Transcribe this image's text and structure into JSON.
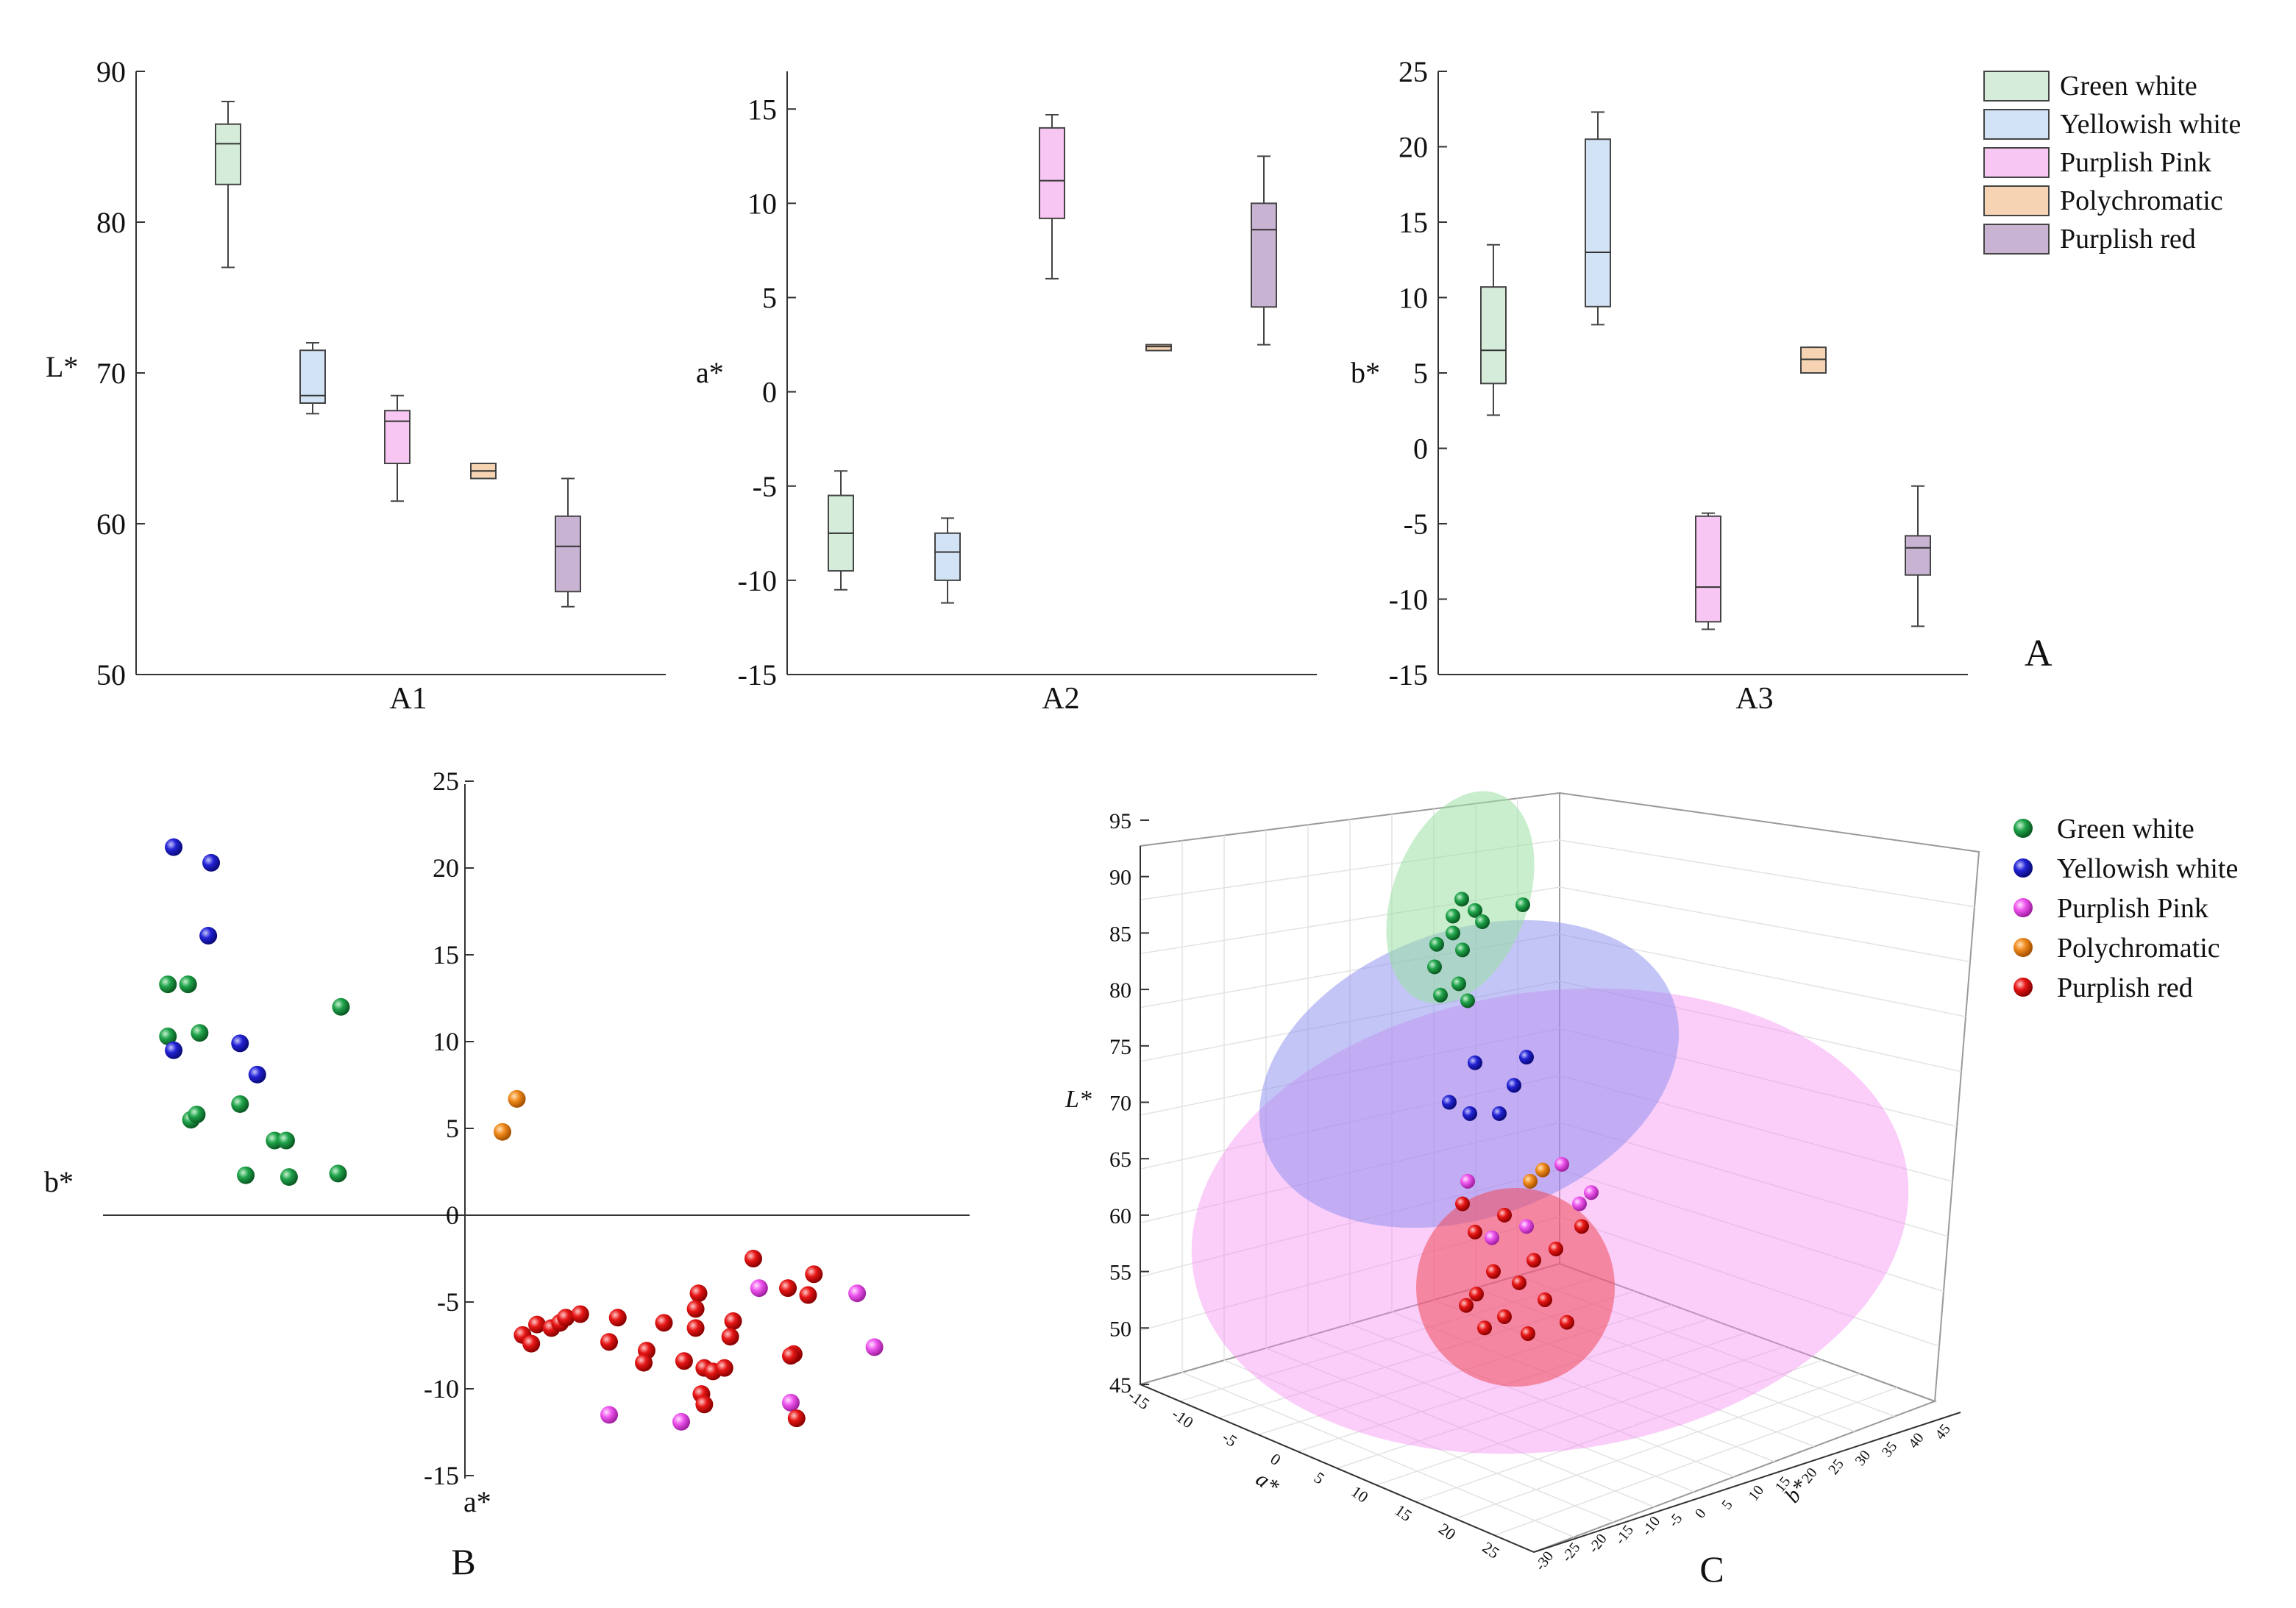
{
  "colors": {
    "green_white": "#1a8a3a",
    "yellowish_white": "#1f1fd0",
    "purplish_pink": "#ee55ee",
    "polychromatic": "#f08a1c",
    "purplish_red": "#e81616",
    "box_green_white": "#d4ecd9",
    "box_yellowish_white": "#d3e3f6",
    "box_purplish_pink": "#f7c6f2",
    "box_polychromatic": "#f6d4b3",
    "box_purplish_red": "#c9b3d3"
  },
  "chart_data": [
    {
      "panel": "A1",
      "type": "box",
      "xlabel": "A1",
      "ylabel": "L*",
      "ylim": [
        50,
        90
      ],
      "yticks": [
        50,
        60,
        70,
        80,
        90
      ],
      "groups": [
        {
          "name": "Green white",
          "min": 77,
          "q1": 82.5,
          "median": 85.2,
          "q3": 86.5,
          "max": 88
        },
        {
          "name": "Yellowish white",
          "min": 67.3,
          "q1": 68,
          "median": 68.5,
          "q3": 71.5,
          "max": 72
        },
        {
          "name": "Purplish Pink",
          "min": 61.5,
          "q1": 64,
          "median": 66.8,
          "q3": 67.5,
          "max": 68.5
        },
        {
          "name": "Polychromatic",
          "min": 63,
          "q1": 63,
          "median": 63.5,
          "q3": 64,
          "max": 64
        },
        {
          "name": "Purplish red",
          "min": 54.5,
          "q1": 55.5,
          "median": 58.5,
          "q3": 60.5,
          "max": 63
        }
      ]
    },
    {
      "panel": "A2",
      "type": "box",
      "xlabel": "A2",
      "ylabel": "a*",
      "ylim": [
        -15,
        17
      ],
      "yticks": [
        -15,
        -10,
        -5,
        0,
        5,
        10,
        15
      ],
      "groups": [
        {
          "name": "Green white",
          "min": -10.5,
          "q1": -9.5,
          "median": -7.5,
          "q3": -5.5,
          "max": -4.2
        },
        {
          "name": "Yellowish white",
          "min": -11.2,
          "q1": -10,
          "median": -8.5,
          "q3": -7.5,
          "max": -6.7
        },
        {
          "name": "Purplish Pink",
          "min": 6,
          "q1": 9.2,
          "median": 11.2,
          "q3": 14,
          "max": 14.7
        },
        {
          "name": "Polychromatic",
          "min": 2.2,
          "q1": 2.2,
          "median": 2.4,
          "q3": 2.5,
          "max": 2.5
        },
        {
          "name": "Purplish red",
          "min": 2.5,
          "q1": 4.5,
          "median": 8.6,
          "q3": 10,
          "max": 12.5
        }
      ]
    },
    {
      "panel": "A3",
      "type": "box",
      "xlabel": "A3",
      "ylabel": "b*",
      "ylim": [
        -15,
        25
      ],
      "yticks": [
        -15,
        -10,
        -5,
        0,
        5,
        10,
        15,
        20,
        25
      ],
      "panel_label": "A",
      "groups": [
        {
          "name": "Green white",
          "min": 2.2,
          "q1": 4.3,
          "median": 6.5,
          "q3": 10.7,
          "max": 13.5
        },
        {
          "name": "Yellowish white",
          "min": 8.2,
          "q1": 9.4,
          "median": 13,
          "q3": 20.5,
          "max": 22.3
        },
        {
          "name": "Purplish Pink",
          "min": -12,
          "q1": -11.5,
          "median": -9.2,
          "q3": -4.5,
          "max": -4.3
        },
        {
          "name": "Polychromatic",
          "min": 5,
          "q1": 5,
          "median": 5.9,
          "q3": 6.7,
          "max": 6.7
        },
        {
          "name": "Purplish red",
          "min": -11.8,
          "q1": -8.4,
          "median": -6.6,
          "q3": -5.8,
          "max": -2.5
        }
      ],
      "legend": [
        "Green white",
        "Yellowish white",
        "Purplish Pink",
        "Polychromatic",
        "Purplish red"
      ]
    },
    {
      "panel": "B",
      "type": "scatter",
      "xlabel": "a*",
      "ylabel": "b*",
      "xlim": [
        -15,
        15
      ],
      "ylim": [
        -15,
        25
      ],
      "yticks": [
        -15,
        -10,
        -5,
        0,
        5,
        10,
        15,
        20,
        25
      ],
      "panel_label": "B",
      "series": [
        {
          "name": "Green white",
          "points": [
            [
              -10.3,
              13.3
            ],
            [
              -9.6,
              13.3
            ],
            [
              -10.3,
              10.3
            ],
            [
              -9.2,
              10.5
            ],
            [
              -9.5,
              5.5
            ],
            [
              -9.3,
              5.8
            ],
            [
              -7.8,
              6.4
            ],
            [
              -6.6,
              4.3
            ],
            [
              -6.2,
              4.3
            ],
            [
              -7.6,
              2.3
            ],
            [
              -6.1,
              2.2
            ],
            [
              -4.4,
              2.4
            ],
            [
              -4.3,
              12
            ]
          ]
        },
        {
          "name": "Yellowish white",
          "points": [
            [
              -10.1,
              21.2
            ],
            [
              -8.8,
              20.3
            ],
            [
              -8.9,
              16.1
            ],
            [
              -10.1,
              9.5
            ],
            [
              -7.8,
              9.9
            ],
            [
              -7.2,
              8.1
            ]
          ]
        },
        {
          "name": "Polychromatic",
          "points": [
            [
              1.8,
              6.7
            ],
            [
              1.3,
              4.8
            ]
          ]
        },
        {
          "name": "Purplish Pink",
          "points": [
            [
              10.2,
              -4.2
            ],
            [
              13.6,
              -4.5
            ],
            [
              14.2,
              -7.6
            ],
            [
              5,
              -11.5
            ],
            [
              7.5,
              -11.9
            ],
            [
              11.3,
              -10.8
            ]
          ]
        },
        {
          "name": "Purplish red",
          "points": [
            [
              2,
              -6.9
            ],
            [
              2.3,
              -7.4
            ],
            [
              2.5,
              -6.3
            ],
            [
              3,
              -6.5
            ],
            [
              3.3,
              -6.2
            ],
            [
              3.5,
              -5.9
            ],
            [
              4,
              -5.7
            ],
            [
              5.3,
              -5.9
            ],
            [
              5,
              -7.3
            ],
            [
              6.3,
              -7.8
            ],
            [
              6.2,
              -8.5
            ],
            [
              6.9,
              -6.2
            ],
            [
              8.1,
              -4.5
            ],
            [
              8,
              -5.4
            ],
            [
              8,
              -6.5
            ],
            [
              7.6,
              -8.4
            ],
            [
              8.3,
              -8.8
            ],
            [
              8.6,
              -9
            ],
            [
              9,
              -8.8
            ],
            [
              9.3,
              -6.1
            ],
            [
              9.2,
              -7
            ],
            [
              10,
              -2.5
            ],
            [
              11.2,
              -4.2
            ],
            [
              11.9,
              -4.6
            ],
            [
              12.1,
              -3.4
            ],
            [
              11.4,
              -8
            ],
            [
              11.3,
              -8.1
            ],
            [
              8.2,
              -10.3
            ],
            [
              8.3,
              -10.9
            ],
            [
              11.5,
              -11.7
            ]
          ]
        }
      ]
    },
    {
      "panel": "C",
      "type": "scatter3d",
      "xlabel": "a*",
      "ylabel": "b*",
      "zlabel": "L*",
      "zticks": [
        45,
        50,
        55,
        60,
        65,
        70,
        75,
        80,
        85,
        90,
        95
      ],
      "a_ticks": [
        "-15",
        "-10",
        "-5",
        "0",
        "5",
        "10",
        "15",
        "20",
        "25"
      ],
      "b_ticks": [
        "-30",
        "-25",
        "-20",
        "-15",
        "-10",
        "-5",
        "0",
        "5",
        "10",
        "15",
        "20",
        "25",
        "30",
        "35",
        "40",
        "45"
      ],
      "panel_label": "C",
      "legend": [
        "Green white",
        "Yellowish white",
        "Purplish Pink",
        "Polychromatic",
        "Purplish red"
      ],
      "series": [
        {
          "name": "Green white",
          "L": [
            88,
            87,
            86,
            86.5,
            87.5,
            85,
            84,
            83.5,
            82,
            80.5,
            79.5,
            79
          ]
        },
        {
          "name": "Yellowish white",
          "L": [
            73.5,
            74,
            71.5,
            70,
            69,
            69
          ]
        },
        {
          "name": "Purplish Pink",
          "L": [
            64.5,
            63,
            62,
            61,
            59,
            58
          ]
        },
        {
          "name": "Polychromatic",
          "L": [
            64,
            63
          ]
        },
        {
          "name": "Purplish red",
          "L": [
            61,
            60,
            59,
            58.5,
            57,
            56,
            55,
            54,
            53,
            52.5,
            52,
            51,
            50.5,
            50,
            49.5
          ]
        }
      ]
    }
  ]
}
